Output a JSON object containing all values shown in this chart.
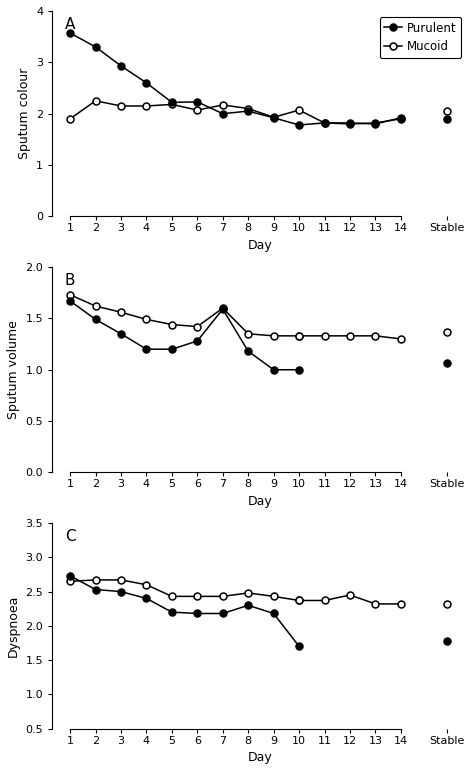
{
  "panel_A": {
    "label": "A",
    "ylabel": "Sputum colour",
    "ylim": [
      0,
      4
    ],
    "yticks": [
      0,
      1,
      2,
      3,
      4
    ],
    "days": [
      1,
      2,
      3,
      4,
      5,
      6,
      7,
      8,
      9,
      10,
      11,
      12,
      13,
      14
    ],
    "purulent": [
      3.57,
      3.3,
      2.93,
      2.6,
      2.22,
      2.23,
      2.0,
      2.05,
      1.92,
      1.78,
      1.82,
      1.8,
      1.82,
      1.9
    ],
    "mucoid": [
      1.9,
      2.25,
      2.15,
      2.15,
      2.18,
      2.07,
      2.17,
      2.1,
      1.93,
      2.07,
      1.82,
      1.82,
      1.8,
      1.92
    ],
    "stable_purulent": 1.9,
    "stable_mucoid": 2.05
  },
  "panel_B": {
    "label": "B",
    "ylabel": "Sputum volume",
    "ylim": [
      0.0,
      2.0
    ],
    "yticks": [
      0.0,
      0.5,
      1.0,
      1.5,
      2.0
    ],
    "days": [
      1,
      2,
      3,
      4,
      5,
      6,
      7,
      8,
      9,
      10
    ],
    "purulent": [
      1.67,
      1.49,
      1.35,
      1.2,
      1.2,
      1.28,
      1.59,
      1.18,
      1.0,
      1.0
    ],
    "mucoid": [
      1.73,
      1.62,
      1.56,
      1.49,
      1.44,
      1.42,
      1.6,
      1.35,
      1.33,
      1.33
    ],
    "mucoid_extra_days": [
      11,
      12,
      13,
      14
    ],
    "mucoid_extra_vals": [
      1.33,
      1.33,
      1.33,
      1.3
    ],
    "stable_purulent": 1.07,
    "stable_mucoid": 1.37
  },
  "panel_C": {
    "label": "C",
    "ylabel": "Dyspnoea",
    "ylim": [
      0.5,
      3.5
    ],
    "yticks": [
      0.5,
      1.0,
      1.5,
      2.0,
      2.5,
      3.0,
      3.5
    ],
    "days": [
      1,
      2,
      3,
      4,
      5,
      6,
      7,
      8,
      9,
      10
    ],
    "purulent": [
      2.73,
      2.53,
      2.5,
      2.4,
      2.2,
      2.18,
      2.18,
      2.3,
      2.18,
      1.7
    ],
    "mucoid": [
      2.65,
      2.67,
      2.67,
      2.6,
      2.43,
      2.43,
      2.43,
      2.48,
      2.43,
      2.37
    ],
    "mucoid_extra_days": [
      11,
      12,
      13,
      14
    ],
    "mucoid_extra_vals": [
      2.37,
      2.45,
      2.32,
      2.32
    ],
    "stable_purulent": 1.78,
    "stable_mucoid": 2.32
  },
  "legend_label_purulent": "Purulent",
  "legend_label_mucoid": "Mucoid",
  "xlabel": "Day",
  "stable_label": "Stable",
  "line_color": "black",
  "markersize": 5,
  "linewidth": 1.1,
  "markeredgewidth": 1.1
}
